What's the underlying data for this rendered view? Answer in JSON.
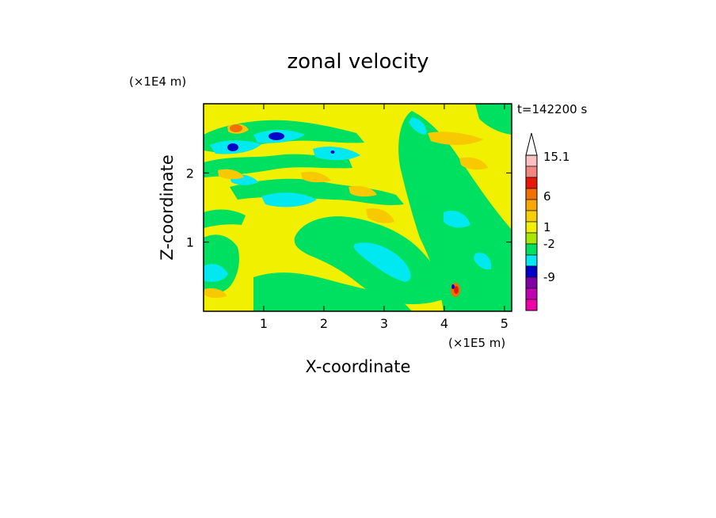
{
  "chart_data": {
    "type": "heatmap",
    "title": "zonal velocity",
    "xlabel": "X-coordinate",
    "ylabel": "Z-coordinate",
    "x_scale_label": "(×1E5 m)",
    "y_scale_label": "(×1E4 m)",
    "time_label": "t=142200 s",
    "xlim": [
      0,
      5.12
    ],
    "ylim": [
      0,
      3.0
    ],
    "x_ticks": [
      "1",
      "2",
      "3",
      "4",
      "5"
    ],
    "x_tick_values": [
      1,
      2,
      3,
      4,
      5
    ],
    "y_ticks": [
      "1",
      "2"
    ],
    "y_tick_values": [
      1,
      2
    ],
    "colorbar": {
      "labels": [
        "15.1",
        "6",
        "1",
        "-2",
        "-9"
      ],
      "levels": [
        {
          "from": 12.0,
          "color": "#f8c0c0"
        },
        {
          "from": 9.0,
          "color": "#f08880"
        },
        {
          "from": 6.0,
          "color": "#e81808"
        },
        {
          "from": 3.0,
          "color": "#f07000"
        },
        {
          "from": 2.0,
          "color": "#f8a800"
        },
        {
          "from": 1.0,
          "color": "#f8d000"
        },
        {
          "from": 0.0,
          "color": "#f0f000"
        },
        {
          "from": -1.0,
          "color": "#a8e800"
        },
        {
          "from": -2.0,
          "color": "#00e060"
        },
        {
          "from": -3.0,
          "color": "#00e8f0"
        },
        {
          "from": -6.0,
          "color": "#0000c8"
        },
        {
          "from": -9.0,
          "color": "#8000a8"
        },
        {
          "from": -12.0,
          "color": "#c000b0"
        },
        {
          "from": -15.0,
          "color": "#f000a8"
        }
      ]
    },
    "colors": {
      "background": "#f0f000",
      "green": "#00e060",
      "cyan": "#00e8f0",
      "lightorange": "#f8c800",
      "orange": "#f8a800",
      "darkorange": "#f07000",
      "red": "#e81808",
      "blue": "#0000c8"
    }
  }
}
